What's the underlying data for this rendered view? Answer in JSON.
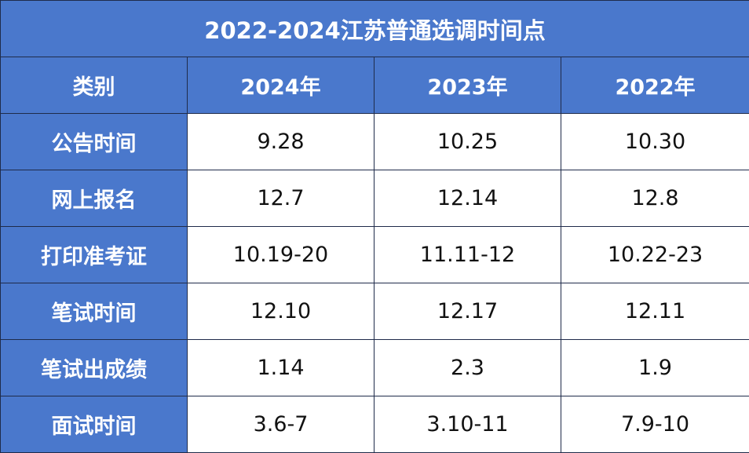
{
  "table": {
    "title": "2022-2024江苏普通选调时间点",
    "headers": [
      "类别",
      "2024年",
      "2023年",
      "2022年"
    ],
    "rows": [
      {
        "label": "公告时间",
        "values": [
          "9.28",
          "10.25",
          "10.30"
        ]
      },
      {
        "label": "网上报名",
        "values": [
          "12.7",
          "12.14",
          "12.8"
        ]
      },
      {
        "label": "打印准考证",
        "values": [
          "10.19-20",
          "11.11-12",
          "10.22-23"
        ]
      },
      {
        "label": "笔试时间",
        "values": [
          "12.10",
          "12.17",
          "12.11"
        ]
      },
      {
        "label": "笔试出成绩",
        "values": [
          "1.14",
          "2.3",
          "1.9"
        ]
      },
      {
        "label": "面试时间",
        "values": [
          "3.6-7",
          "3.10-11",
          "7.9-10"
        ]
      }
    ]
  },
  "colors": {
    "header_bg": "#4a78cc",
    "header_text": "#ffffff",
    "border": "#1f2b4a",
    "cell_bg": "#ffffff",
    "cell_text": "#111111"
  }
}
